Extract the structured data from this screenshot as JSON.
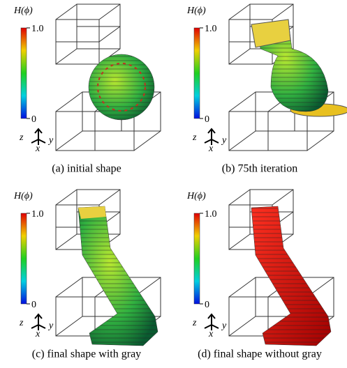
{
  "panels": [
    {
      "colorbar": {
        "label": "H(ϕ)",
        "max": "1.0",
        "min": "0"
      },
      "axes": {
        "z": "z",
        "x": "x",
        "y": "y"
      },
      "caption": "(a) initial shape"
    },
    {
      "colorbar": {
        "label": "H(ϕ)",
        "max": "1.0",
        "min": "0"
      },
      "axes": {
        "z": "z",
        "x": "x",
        "y": "y"
      },
      "caption": "(b) 75th iteration"
    },
    {
      "colorbar": {
        "label": "H(ϕ)",
        "max": "1.0",
        "min": "0"
      },
      "axes": {
        "z": "z",
        "x": "x",
        "y": "y"
      },
      "caption": "(c) final shape with gray"
    },
    {
      "colorbar": {
        "label": "H(ϕ)",
        "max": "1.0",
        "min": "0"
      },
      "axes": {
        "z": "z",
        "x": "x",
        "y": "y"
      },
      "caption": "(d) final shape without gray"
    }
  ]
}
